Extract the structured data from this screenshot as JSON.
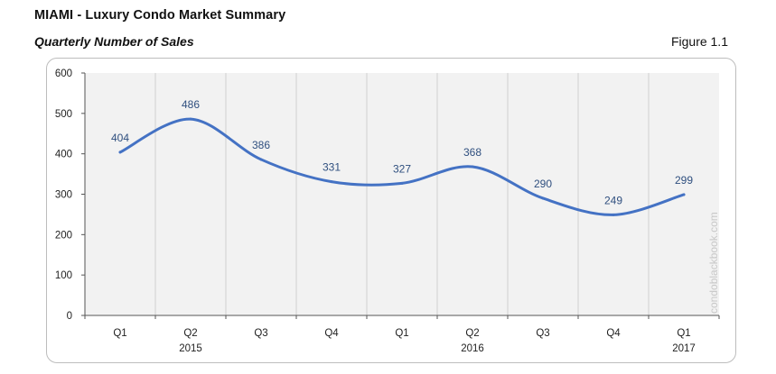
{
  "header": {
    "title": "MIAMI - Luxury Condo Market Summary",
    "subtitle": "Quarterly Number of Sales",
    "figure": "Figure 1.1"
  },
  "watermark": "condoblackbook.com",
  "colors": {
    "line": "#4472C4",
    "plot_background": "#f2f2f2",
    "gridline": "#d0d0d0",
    "label": "#2f4f7f"
  },
  "chart_data": {
    "type": "line",
    "categories": [
      "Q1",
      "Q2",
      "Q3",
      "Q4",
      "Q1",
      "Q2",
      "Q3",
      "Q4",
      "Q1"
    ],
    "year_labels": [
      "",
      "2015",
      "",
      "",
      "",
      "2016",
      "",
      "",
      "2017"
    ],
    "series": [
      {
        "values": [
          404,
          486,
          386,
          331,
          327,
          368,
          290,
          249,
          299
        ],
        "color": "#4472C4",
        "smooth": true
      }
    ],
    "ylim": [
      0,
      600
    ],
    "yticks": [
      0,
      100,
      200,
      300,
      400,
      500,
      600
    ],
    "data_labels": true,
    "grid": "vertical",
    "legend": "none"
  }
}
